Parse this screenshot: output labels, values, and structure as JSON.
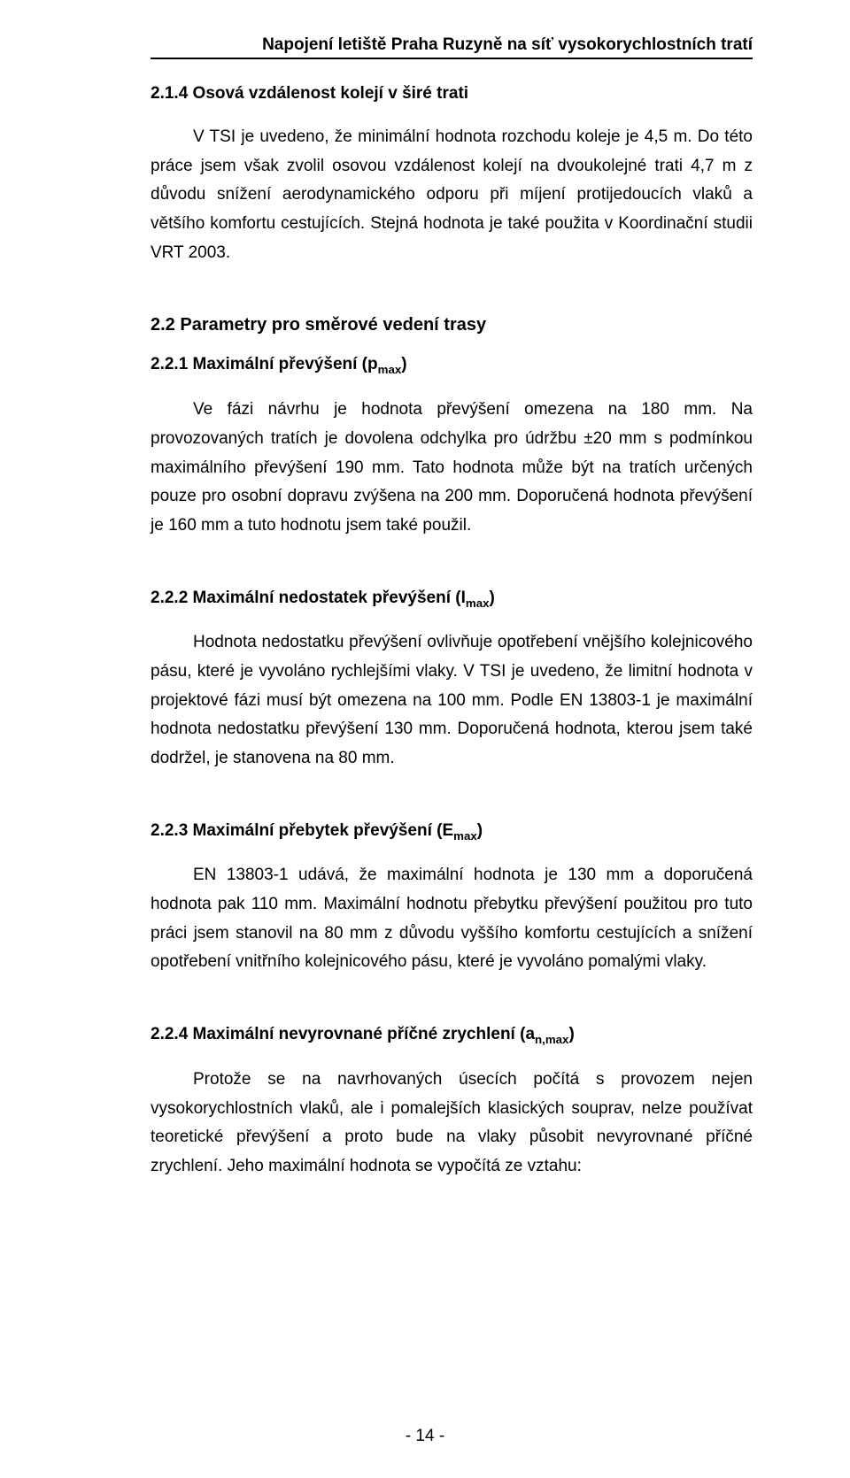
{
  "runningHead": "Napojení letiště Praha Ruzyně na síť vysokorychlostních tratí",
  "s214": {
    "heading": "2.1.4  Osová vzdálenost kolejí v širé trati",
    "p1": "V TSI je uvedeno, že minimální hodnota rozchodu koleje je 4,5 m. Do této práce jsem však zvolil osovou vzdálenost kolejí na dvoukolejné trati 4,7 m z důvodu snížení aerodynamického odporu při míjení protijedoucích vlaků a většího komfortu cestujících. Stejná hodnota je také použita v Koordinační studii VRT 2003."
  },
  "s22": {
    "heading": "2.2   Parametry pro směrové vedení trasy"
  },
  "s221": {
    "heading_pre": "2.2.1  Maximální převýšení (p",
    "heading_sub": "max",
    "heading_post": ")",
    "p1": "Ve fázi návrhu je hodnota převýšení omezena na 180 mm. Na provozovaných tratích je dovolena odchylka pro údržbu ±20 mm s podmínkou maximálního převýšení 190 mm. Tato hodnota může být na tratích určených pouze pro osobní dopravu zvýšena na 200 mm. Doporučená hodnota převýšení je 160 mm a tuto hodnotu jsem také použil."
  },
  "s222": {
    "heading_pre": "2.2.2  Maximální nedostatek převýšení (I",
    "heading_sub": "max",
    "heading_post": ")",
    "p1": "Hodnota nedostatku převýšení ovlivňuje opotřebení vnějšího kolejnicového pásu, které je vyvoláno rychlejšími vlaky. V TSI je uvedeno, že limitní hodnota v projektové fázi musí být omezena na 100 mm. Podle EN 13803-1 je maximální hodnota nedostatku převýšení 130 mm. Doporučená hodnota, kterou jsem také dodržel, je stanovena na 80 mm."
  },
  "s223": {
    "heading_pre": "2.2.3  Maximální přebytek převýšení (E",
    "heading_sub": "max",
    "heading_post": ")",
    "p1": "EN 13803-1 udává, že maximální hodnota je 130 mm a doporučená hodnota pak 110 mm. Maximální hodnotu přebytku převýšení použitou pro tuto práci jsem stanovil na 80 mm z důvodu vyššího komfortu cestujících a snížení opotřebení vnitřního kolejnicového pásu, které je vyvoláno pomalými vlaky."
  },
  "s224": {
    "heading_pre": "2.2.4  Maximální nevyrovnané příčné zrychlení (a",
    "heading_sub": "n,max",
    "heading_post": ")",
    "p1": "Protože se na navrhovaných úsecích počítá s provozem nejen vysokorychlostních vlaků, ale i pomalejších klasických souprav, nelze používat teoretické převýšení a proto bude na vlaky působit nevyrovnané příčné zrychlení. Jeho maximální hodnota se vypočítá ze vztahu:"
  },
  "footer": "- 14 -"
}
